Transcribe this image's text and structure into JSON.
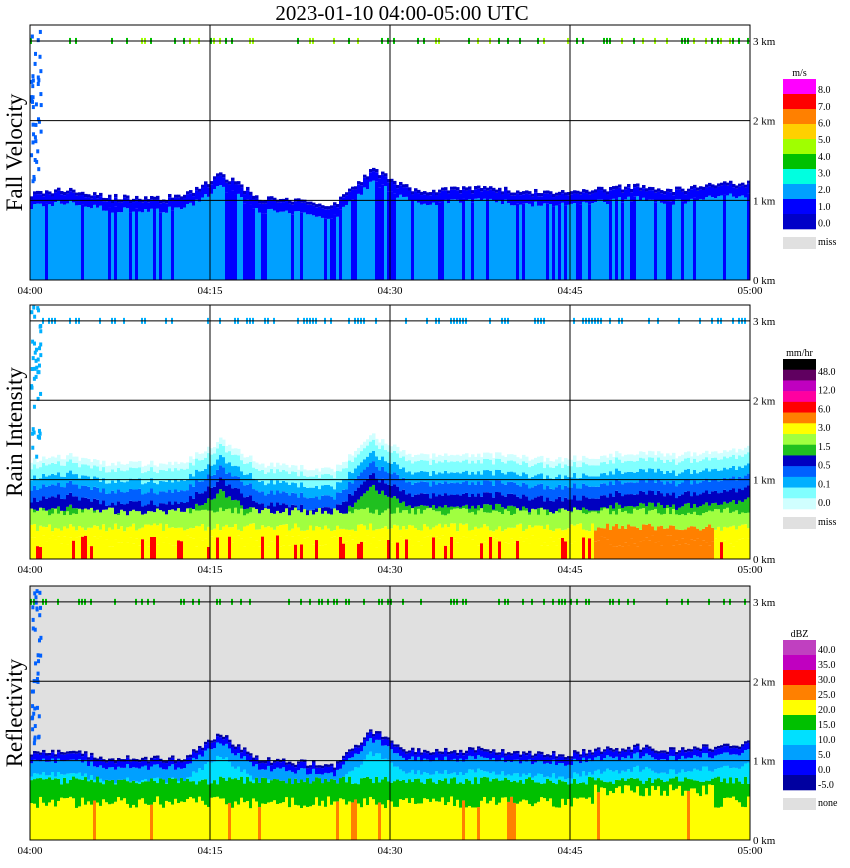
{
  "title": "2023-01-10   04:00-05:00 UTC",
  "x_ticks": [
    "04:00",
    "04:15",
    "04:30",
    "04:45",
    "05:00"
  ],
  "y_ticks": [
    "0 km",
    "1 km",
    "2 km",
    "3 km"
  ],
  "chart_data": [
    {
      "type": "heatmap",
      "ylabel": "Fall Velocity",
      "unit": "m/s",
      "background": "#ffffff",
      "legend_levels": [
        "8.0",
        "7.0",
        "6.0",
        "5.0",
        "4.0",
        "3.0",
        "2.0",
        "1.0",
        "0.0"
      ],
      "legend_colors": [
        "#ff00ff",
        "#ff0000",
        "#ff8000",
        "#ffd000",
        "#a0ff00",
        "#00c000",
        "#00ffe0",
        "#00a0ff",
        "#0000ff",
        "#0000c8"
      ],
      "missing_label": "miss",
      "missing_color": "#e0e0e0",
      "xlim": [
        "04:00",
        "05:00"
      ],
      "ylim": [
        0,
        3.2
      ],
      "echo_top_km": [
        1.05,
        1.1,
        1.0,
        1.0,
        1.0,
        1.3,
        1.0,
        0.95,
        0.92,
        1.35,
        1.1,
        1.1,
        1.12,
        1.08,
        1.05,
        1.1,
        1.15,
        1.1,
        1.15,
        1.2
      ],
      "dominant_values": [
        "2.0",
        "1.0"
      ]
    },
    {
      "type": "heatmap",
      "ylabel": "Rain Intensity",
      "unit": "mm/hr",
      "background": "#ffffff",
      "legend_levels": [
        "48.0",
        "12.0",
        "6.0",
        "3.0",
        "1.5",
        "0.5",
        "0.1",
        "0.0"
      ],
      "legend_colors": [
        "#000000",
        "#600060",
        "#c000c0",
        "#ff00a0",
        "#ff0000",
        "#ff8000",
        "#ffff00",
        "#a0ff40",
        "#20c020",
        "#0000c0",
        "#0060ff",
        "#00b0ff",
        "#80ffff",
        "#d0ffff"
      ],
      "missing_label": "miss",
      "missing_color": "#e0e0e0",
      "xlim": [
        "04:00",
        "05:00"
      ],
      "ylim": [
        0,
        3.2
      ],
      "echo_top_km": [
        1.05,
        1.1,
        1.0,
        1.0,
        1.0,
        1.3,
        1.0,
        0.95,
        0.92,
        1.35,
        1.1,
        1.1,
        1.12,
        1.08,
        1.05,
        1.1,
        1.15,
        1.1,
        1.15,
        1.2
      ],
      "max_intensity_region": [
        "04:47",
        "04:57"
      ]
    },
    {
      "type": "heatmap",
      "ylabel": "Reflectivity",
      "unit": "dBZ",
      "background": "#e0e0e0",
      "legend_levels": [
        "40.0",
        "35.0",
        "30.0",
        "25.0",
        "20.0",
        "15.0",
        "10.0",
        "5.0",
        "0.0",
        "-5.0"
      ],
      "legend_colors": [
        "#c040c0",
        "#c000c0",
        "#ff0000",
        "#ff8000",
        "#ffff00",
        "#00c000",
        "#00e0ff",
        "#00a0ff",
        "#0000ff",
        "#0000a0"
      ],
      "missing_label": "none",
      "missing_color": "#e0e0e0",
      "xlim": [
        "04:00",
        "05:00"
      ],
      "ylim": [
        0,
        3.2
      ],
      "echo_top_km": [
        1.05,
        1.1,
        1.0,
        1.0,
        1.0,
        1.3,
        1.0,
        0.95,
        0.92,
        1.35,
        1.1,
        1.1,
        1.12,
        1.08,
        1.05,
        1.1,
        1.15,
        1.1,
        1.15,
        1.2
      ]
    }
  ]
}
